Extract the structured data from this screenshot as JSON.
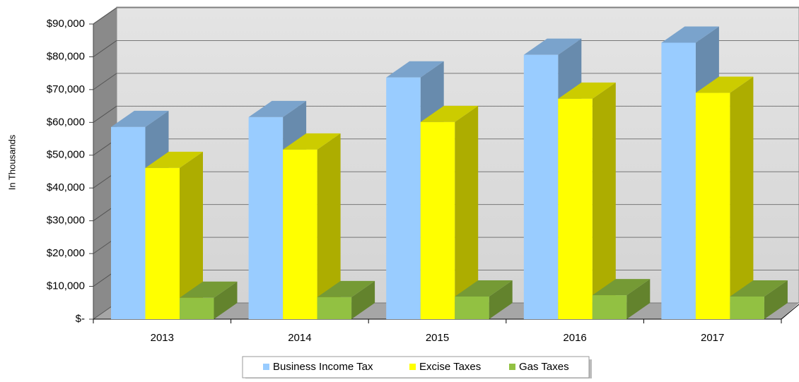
{
  "chart_data": {
    "type": "bar3d",
    "y_label": "In Thousands",
    "categories": [
      "2013",
      "2014",
      "2015",
      "2016",
      "2017"
    ],
    "series": [
      {
        "name": "Business Income Tax",
        "color": "#99ccff",
        "values": [
          58600,
          61600,
          73700,
          80600,
          84300
        ]
      },
      {
        "name": "Excise Taxes",
        "color": "#ffff00",
        "values": [
          46100,
          51700,
          60100,
          67200,
          69000
        ]
      },
      {
        "name": "Gas Taxes",
        "color": "#92c142",
        "values": [
          6500,
          6700,
          6900,
          7300,
          6900
        ]
      }
    ],
    "ylim": [
      0,
      90000
    ],
    "yticks": [
      {
        "value": 0,
        "label": "$-"
      },
      {
        "value": 10000,
        "label": "$10,000"
      },
      {
        "value": 20000,
        "label": "$20,000"
      },
      {
        "value": 30000,
        "label": "$30,000"
      },
      {
        "value": 40000,
        "label": "$40,000"
      },
      {
        "value": 50000,
        "label": "$50,000"
      },
      {
        "value": 60000,
        "label": "$60,000"
      },
      {
        "value": 70000,
        "label": "$70,000"
      },
      {
        "value": 80000,
        "label": "$80,000"
      },
      {
        "value": 90000,
        "label": "$90,000"
      }
    ],
    "grid": true,
    "legend": "bottom"
  }
}
